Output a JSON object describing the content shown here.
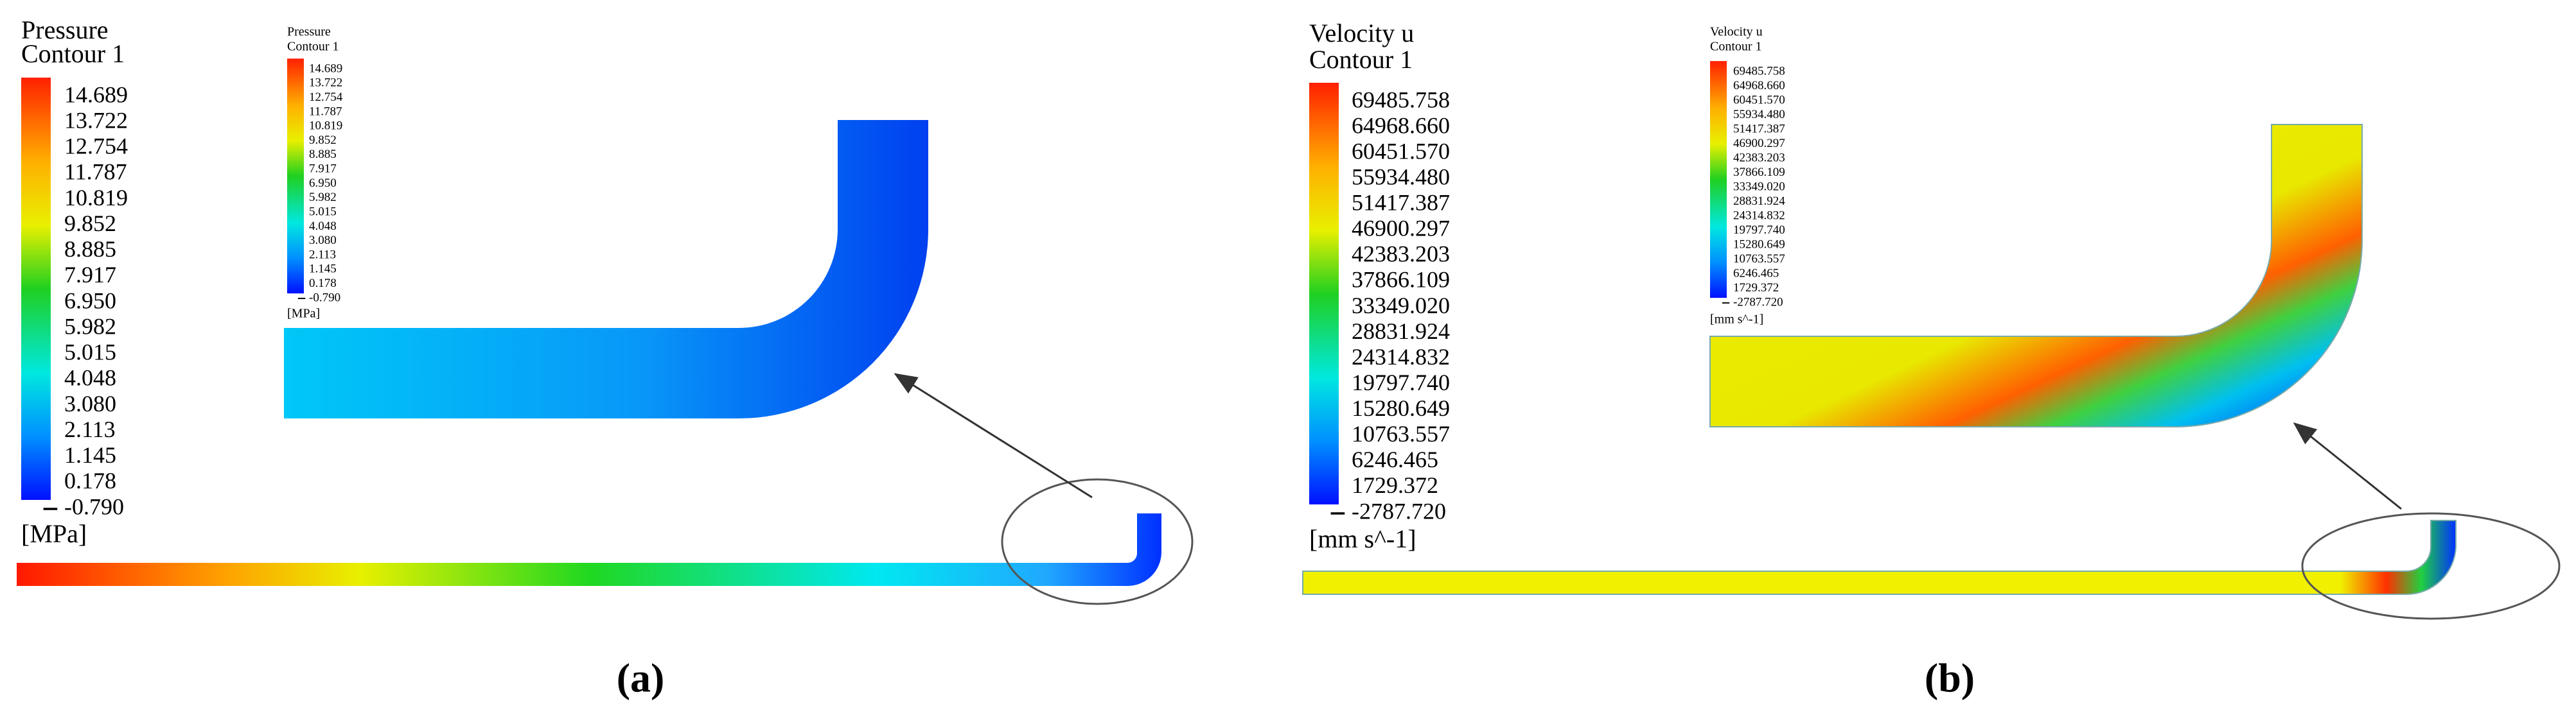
{
  "panels": [
    {
      "label": "(a)",
      "legend_title": "Pressure",
      "legend_subtitle": "Contour 1",
      "unit": "[MPa]",
      "levels": [
        "14.689",
        "13.722",
        "12.754",
        "11.787",
        "10.819",
        "9.852",
        "8.885",
        "7.917",
        "6.950",
        "5.982",
        "5.015",
        "4.048",
        "3.080",
        "2.113",
        "1.145",
        "0.178",
        "-0.790"
      ]
    },
    {
      "label": "(b)",
      "legend_title": "Velocity u",
      "legend_subtitle": "Contour 1",
      "unit": "[mm s^-1]",
      "levels": [
        "69485.758",
        "64968.660",
        "60451.570",
        "55934.480",
        "51417.387",
        "46900.297",
        "42383.203",
        "37866.109",
        "33349.020",
        "28831.924",
        "24314.832",
        "19797.740",
        "15280.649",
        "10763.557",
        "6246.465",
        "1729.372",
        "-2787.720"
      ]
    }
  ]
}
